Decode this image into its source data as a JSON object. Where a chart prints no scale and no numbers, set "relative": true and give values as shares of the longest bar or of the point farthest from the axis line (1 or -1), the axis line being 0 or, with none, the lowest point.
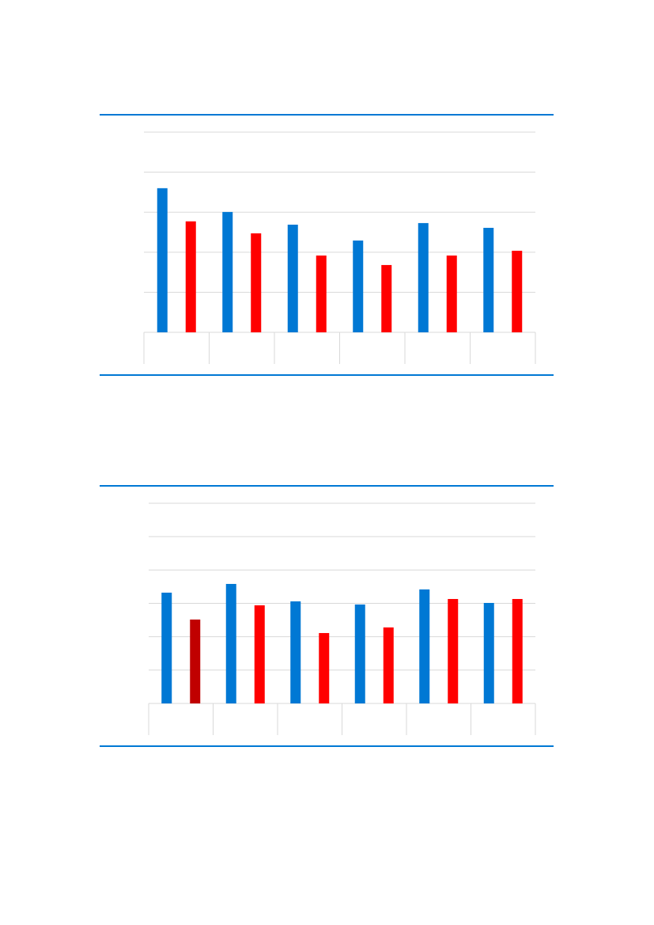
{
  "chart_data": [
    {
      "type": "bar",
      "relative": true,
      "grid": true,
      "categories": [
        null,
        null,
        null,
        null,
        null,
        null
      ],
      "series": [
        {
          "color": "#0078d4",
          "values": [
            1,
            0.835,
            0.747,
            0.637,
            0.758,
            0.725
          ]
        },
        {
          "color": "#ff0000",
          "values": [
            0.77,
            0.687,
            0.533,
            0.467,
            0.533,
            0.566
          ]
        }
      ]
    },
    {
      "type": "bar",
      "relative": true,
      "grid": true,
      "categories": [
        null,
        null,
        null,
        null,
        null,
        null
      ],
      "series": [
        {
          "color": "#0078d4",
          "values": [
            0.927,
            1,
            0.854,
            0.828,
            0.954,
            0.841
          ]
        },
        {
          "color": "#ff0000",
          "colors": [
            "#c00000",
            null,
            null,
            null,
            null,
            null
          ],
          "values": [
            0.702,
            0.821,
            0.589,
            0.636,
            0.874,
            0.874
          ]
        }
      ]
    }
  ]
}
